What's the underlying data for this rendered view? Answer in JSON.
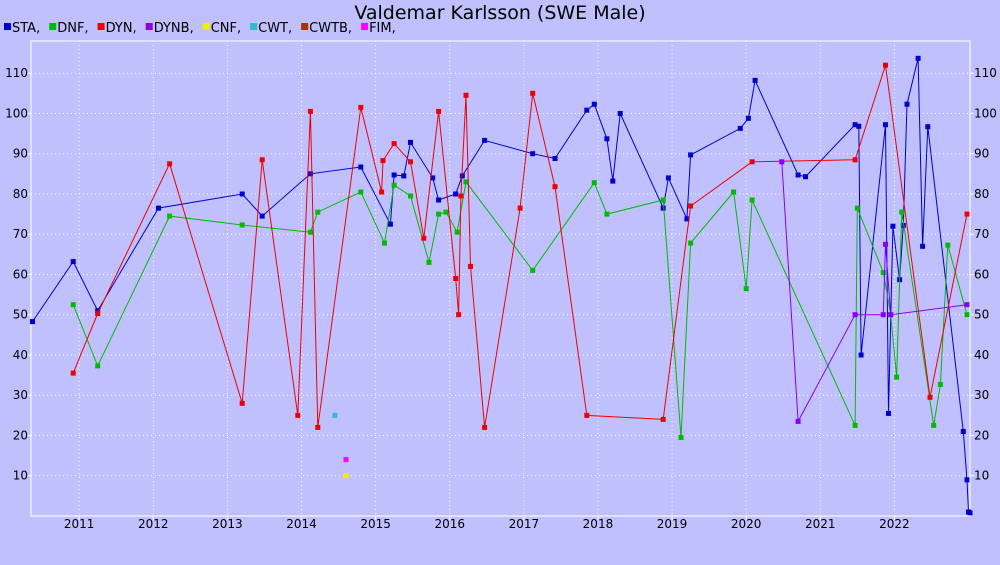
{
  "chart_data": {
    "type": "line",
    "title": "Valdemar Karlsson (SWE Male)",
    "xlabel": "",
    "ylabel": "",
    "xlim": [
      2010.35,
      2023.02
    ],
    "ylim": [
      0,
      118
    ],
    "x_ticks": [
      2011,
      2012,
      2013,
      2014,
      2015,
      2016,
      2017,
      2018,
      2019,
      2020,
      2021,
      2022
    ],
    "y_ticks": [
      10,
      20,
      30,
      40,
      50,
      60,
      70,
      80,
      90,
      100,
      110
    ],
    "grid": true,
    "legend_position": "top-left",
    "legend": [
      "STA,",
      "DNF,",
      "DYN,",
      "DYNB,",
      "CNF,",
      "CWT,",
      "CWTB,",
      "FIM,"
    ],
    "series": [
      {
        "name": "STA",
        "color": "#0000cc",
        "x": [
          2010.37,
          2010.92,
          2011.25,
          2012.07,
          2013.2,
          2013.47,
          2014.12,
          2014.8,
          2015.2,
          2015.25,
          2015.38,
          2015.47,
          2015.77,
          2015.85,
          2016.08,
          2016.17,
          2016.47,
          2017.12,
          2017.42,
          2017.85,
          2017.95,
          2018.12,
          2018.2,
          2018.3,
          2018.88,
          2018.95,
          2019.2,
          2019.25,
          2019.92,
          2020.03,
          2020.12,
          2020.7,
          2020.8,
          2021.47,
          2021.52,
          2021.55,
          2021.88,
          2021.92,
          2021.98,
          2022.07,
          2022.12,
          2022.17,
          2022.32,
          2022.38,
          2022.45,
          2022.93,
          2022.98,
          2023.0,
          2023.02
        ],
        "y": [
          48.3,
          63.2,
          51.0,
          76.5,
          80.0,
          74.5,
          85.0,
          86.7,
          72.5,
          84.7,
          84.5,
          92.8,
          84.0,
          78.5,
          80.0,
          84.5,
          93.3,
          90.0,
          88.8,
          100.8,
          102.3,
          93.7,
          83.2,
          100.0,
          76.5,
          84.0,
          73.8,
          89.7,
          96.3,
          98.8,
          108.2,
          84.7,
          84.3,
          97.2,
          96.8,
          40.0,
          97.2,
          25.5,
          72.0,
          58.7,
          72.2,
          102.3,
          113.7,
          67.0,
          96.7,
          21.0,
          9.0,
          1.0,
          0.8
        ]
      },
      {
        "name": "DNF",
        "color": "#00bb00",
        "x": [
          2010.92,
          2011.25,
          2012.22,
          2013.2,
          2014.12,
          2014.22,
          2014.8,
          2015.12,
          2015.25,
          2015.47,
          2015.72,
          2015.85,
          2015.95,
          2016.1,
          2016.22,
          2017.12,
          2017.95,
          2018.12,
          2018.88,
          2019.12,
          2019.25,
          2019.83,
          2020.0,
          2020.08,
          2021.47,
          2021.5,
          2021.85,
          2021.95,
          2022.03,
          2022.1,
          2022.53,
          2022.62,
          2022.72,
          2022.98
        ],
        "y": [
          52.5,
          37.3,
          74.5,
          72.3,
          70.5,
          75.5,
          80.5,
          67.8,
          82.2,
          79.5,
          63.0,
          75.0,
          75.5,
          70.5,
          83.0,
          61.0,
          82.8,
          75.0,
          78.5,
          19.5,
          67.8,
          80.5,
          56.5,
          78.5,
          22.5,
          76.5,
          60.5,
          50.0,
          34.5,
          75.5,
          22.5,
          32.7,
          67.3,
          50.0
        ]
      },
      {
        "name": "DYN",
        "color": "#ee0000",
        "x": [
          2010.92,
          2011.25,
          2012.22,
          2013.2,
          2013.47,
          2013.95,
          2014.12,
          2014.22,
          2014.8,
          2015.08,
          2015.1,
          2015.25,
          2015.47,
          2015.65,
          2015.85,
          2016.08,
          2016.12,
          2016.15,
          2016.22,
          2016.28,
          2016.47,
          2016.95,
          2017.12,
          2017.42,
          2017.85,
          2018.88,
          2019.25,
          2020.08,
          2021.47,
          2021.88,
          2022.48,
          2022.98
        ],
        "y": [
          35.5,
          50.3,
          87.5,
          28.0,
          88.5,
          25.0,
          100.5,
          22.0,
          101.5,
          80.5,
          88.3,
          92.5,
          88.0,
          69.0,
          100.5,
          59.0,
          50.0,
          79.5,
          104.5,
          62.0,
          22.0,
          76.5,
          105.0,
          81.8,
          25.0,
          24.0,
          77.0,
          88.0,
          88.5,
          112.0,
          29.5,
          75.0
        ]
      },
      {
        "name": "DYNB",
        "color": "#8800ee",
        "x": [
          2020.48,
          2020.7,
          2021.47,
          2021.85,
          2021.88,
          2021.95,
          2022.98
        ],
        "y": [
          88.0,
          23.5,
          50.0,
          50.0,
          67.5,
          50.0,
          52.5
        ]
      },
      {
        "name": "CNF",
        "color": "#eeee00",
        "x": [
          2014.6
        ],
        "y": [
          10.0
        ]
      },
      {
        "name": "CWT",
        "color": "#33bbcc",
        "x": [
          2014.45
        ],
        "y": [
          25.0
        ]
      },
      {
        "name": "CWTB",
        "color": "#aa3300",
        "x": [],
        "y": []
      },
      {
        "name": "FIM",
        "color": "#ff00ff",
        "x": [
          2014.6
        ],
        "y": [
          14.0
        ]
      }
    ]
  }
}
